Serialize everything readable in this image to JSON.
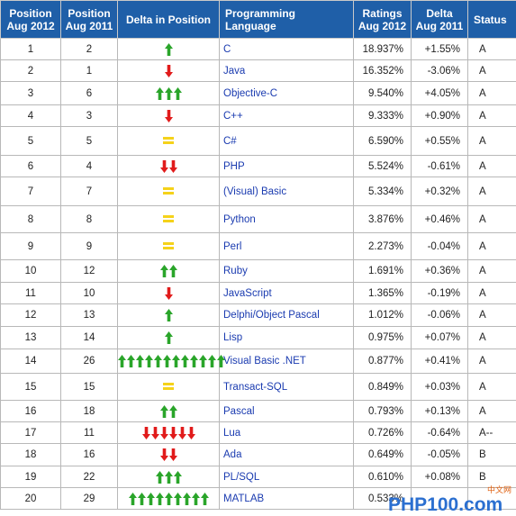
{
  "headers": [
    "Position Aug 2012",
    "Position Aug 2011",
    "Delta in Position",
    "Programming Language",
    "Ratings Aug 2012",
    "Delta Aug 2011",
    "Status"
  ],
  "colors": {
    "header_bg": "#1f5fa8",
    "up": "#2aa52a",
    "down": "#e11b1b",
    "same": "#f5d21a",
    "link": "#1a3bb0"
  },
  "rows": [
    {
      "pos2012": "1",
      "pos2011": "2",
      "delta": {
        "dir": "up",
        "count": 1
      },
      "language": "C",
      "rating": "18.937%",
      "change": "+1.55%",
      "status": "A"
    },
    {
      "pos2012": "2",
      "pos2011": "1",
      "delta": {
        "dir": "down",
        "count": 1
      },
      "language": "Java",
      "rating": "16.352%",
      "change": "-3.06%",
      "status": "A"
    },
    {
      "pos2012": "3",
      "pos2011": "6",
      "delta": {
        "dir": "up",
        "count": 3
      },
      "language": "Objective-C",
      "rating": "9.540%",
      "change": "+4.05%",
      "status": "A"
    },
    {
      "pos2012": "4",
      "pos2011": "3",
      "delta": {
        "dir": "down",
        "count": 1
      },
      "language": "C++",
      "rating": "9.333%",
      "change": "+0.90%",
      "status": "A"
    },
    {
      "pos2012": "5",
      "pos2011": "5",
      "delta": {
        "dir": "same",
        "count": 1
      },
      "language": "C#",
      "rating": "6.590%",
      "change": "+0.55%",
      "status": "A"
    },
    {
      "pos2012": "6",
      "pos2011": "4",
      "delta": {
        "dir": "down",
        "count": 2
      },
      "language": "PHP",
      "rating": "5.524%",
      "change": "-0.61%",
      "status": "A"
    },
    {
      "pos2012": "7",
      "pos2011": "7",
      "delta": {
        "dir": "same",
        "count": 1
      },
      "language": "(Visual) Basic",
      "rating": "5.334%",
      "change": "+0.32%",
      "status": "A"
    },
    {
      "pos2012": "8",
      "pos2011": "8",
      "delta": {
        "dir": "same",
        "count": 1
      },
      "language": "Python",
      "rating": "3.876%",
      "change": "+0.46%",
      "status": "A"
    },
    {
      "pos2012": "9",
      "pos2011": "9",
      "delta": {
        "dir": "same",
        "count": 1
      },
      "language": "Perl",
      "rating": "2.273%",
      "change": "-0.04%",
      "status": "A"
    },
    {
      "pos2012": "10",
      "pos2011": "12",
      "delta": {
        "dir": "up",
        "count": 2
      },
      "language": "Ruby",
      "rating": "1.691%",
      "change": "+0.36%",
      "status": "A"
    },
    {
      "pos2012": "11",
      "pos2011": "10",
      "delta": {
        "dir": "down",
        "count": 1
      },
      "language": "JavaScript",
      "rating": "1.365%",
      "change": "-0.19%",
      "status": "A"
    },
    {
      "pos2012": "12",
      "pos2011": "13",
      "delta": {
        "dir": "up",
        "count": 1
      },
      "language": "Delphi/Object Pascal",
      "rating": "1.012%",
      "change": "-0.06%",
      "status": "A"
    },
    {
      "pos2012": "13",
      "pos2011": "14",
      "delta": {
        "dir": "up",
        "count": 1
      },
      "language": "Lisp",
      "rating": "0.975%",
      "change": "+0.07%",
      "status": "A"
    },
    {
      "pos2012": "14",
      "pos2011": "26",
      "delta": {
        "dir": "up",
        "count": 12
      },
      "language": "Visual Basic .NET",
      "rating": "0.877%",
      "change": "+0.41%",
      "status": "A"
    },
    {
      "pos2012": "15",
      "pos2011": "15",
      "delta": {
        "dir": "same",
        "count": 1
      },
      "language": "Transact-SQL",
      "rating": "0.849%",
      "change": "+0.03%",
      "status": "A"
    },
    {
      "pos2012": "16",
      "pos2011": "18",
      "delta": {
        "dir": "up",
        "count": 2
      },
      "language": "Pascal",
      "rating": "0.793%",
      "change": "+0.13%",
      "status": "A"
    },
    {
      "pos2012": "17",
      "pos2011": "11",
      "delta": {
        "dir": "down",
        "count": 6
      },
      "language": "Lua",
      "rating": "0.726%",
      "change": "-0.64%",
      "status": "A--"
    },
    {
      "pos2012": "18",
      "pos2011": "16",
      "delta": {
        "dir": "down",
        "count": 2
      },
      "language": "Ada",
      "rating": "0.649%",
      "change": "-0.05%",
      "status": "B"
    },
    {
      "pos2012": "19",
      "pos2011": "22",
      "delta": {
        "dir": "up",
        "count": 3
      },
      "language": "PL/SQL",
      "rating": "0.610%",
      "change": "+0.08%",
      "status": "B"
    },
    {
      "pos2012": "20",
      "pos2011": "29",
      "delta": {
        "dir": "up",
        "count": 9
      },
      "language": "MATLAB",
      "rating": "0.533%",
      "change": "",
      "status": ""
    }
  ],
  "watermark": {
    "text": "PHP100.com",
    "small_text": "中文网"
  }
}
